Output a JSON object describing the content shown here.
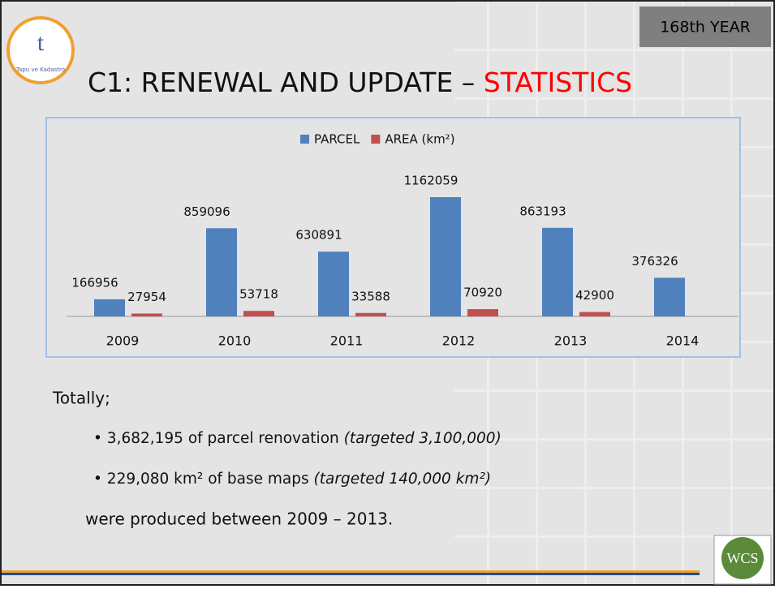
{
  "header": {
    "badge": "168th YEAR",
    "title_prefix": "C1: RENEWAL AND UPDATE – ",
    "title_highlight": "STATISTICS",
    "logo_text": "Tapu ve Kadastro"
  },
  "chart_data": {
    "type": "bar",
    "categories": [
      "2009",
      "2010",
      "2011",
      "2012",
      "2013",
      "2014"
    ],
    "series": [
      {
        "name": "PARCEL",
        "color": "#4f81bd",
        "values": [
          166956,
          859096,
          630891,
          1162059,
          863193,
          376326
        ]
      },
      {
        "name": "AREA (km²)",
        "color": "#c0504d",
        "values": [
          27954,
          53718,
          33588,
          70920,
          42900,
          null
        ]
      }
    ],
    "legend": "top"
  },
  "body": {
    "intro": "Totally;",
    "bullets": [
      {
        "text": "3,682,195 of parcel renovation ",
        "note": "(targeted 3,100,000)"
      },
      {
        "text": "229,080 km² of base maps ",
        "note": "(targeted 140,000 km²)"
      }
    ],
    "outro": "were produced between 2009 – 2013.",
    "corner_logo": "WCS"
  }
}
